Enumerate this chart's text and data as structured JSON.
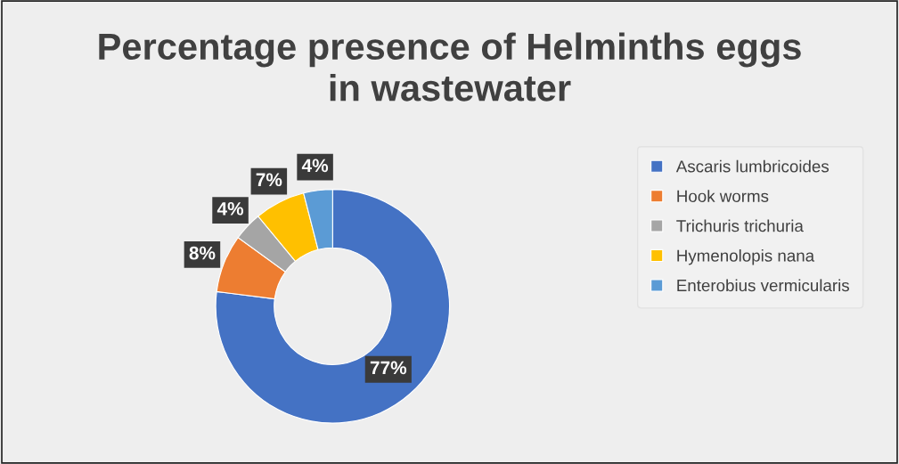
{
  "chart_data": {
    "type": "donut",
    "title": "Percentage presence of Helminths eggs\nin wastewater",
    "categories": [
      "Ascaris lumbricoides",
      "Hook worms",
      "Trichuris trichuria",
      "Hymenolopis nana",
      "Enterobius vermicularis"
    ],
    "values": [
      77,
      8,
      4,
      7,
      4
    ],
    "colors": [
      "#4472c4",
      "#ed7d31",
      "#a5a5a5",
      "#ffc000",
      "#5b9bd5"
    ],
    "value_labels": [
      "77%",
      "8%",
      "4%",
      "7%",
      "4%"
    ],
    "legend": "right"
  }
}
